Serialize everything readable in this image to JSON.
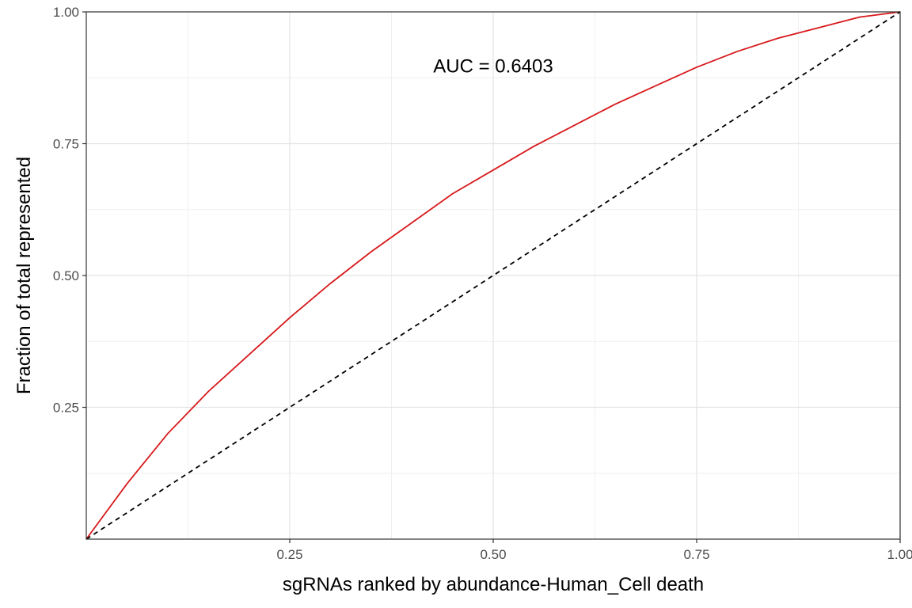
{
  "chart_data": {
    "type": "line",
    "title": "",
    "xlabel": "sgRNAs ranked by abundance-Human_Cell death",
    "ylabel": "Fraction of total represented",
    "xlim": [
      0,
      1
    ],
    "ylim": [
      0,
      1
    ],
    "x_ticks": [
      0.25,
      0.5,
      0.75,
      1.0
    ],
    "x_tick_labels": [
      "0.25",
      "0.50",
      "0.75",
      "1.00"
    ],
    "y_ticks": [
      0.25,
      0.5,
      0.75,
      1.0
    ],
    "y_tick_labels": [
      "0.25",
      "0.50",
      "0.75",
      "1.00"
    ],
    "grid": true,
    "annotation": "AUC = 0.6403",
    "series": [
      {
        "color": "#d7191c",
        "style": "solid",
        "x": [
          0,
          0.05,
          0.1,
          0.15,
          0.2,
          0.25,
          0.3,
          0.35,
          0.4,
          0.45,
          0.5,
          0.55,
          0.6,
          0.65,
          0.7,
          0.75,
          0.8,
          0.85,
          0.9,
          0.95,
          1.0
        ],
        "y": [
          0,
          0.105,
          0.2,
          0.28,
          0.35,
          0.42,
          0.485,
          0.545,
          0.6,
          0.655,
          0.7,
          0.745,
          0.785,
          0.825,
          0.86,
          0.895,
          0.925,
          0.95,
          0.97,
          0.99,
          1.0
        ]
      },
      {
        "color": "#000000",
        "style": "dashed",
        "x": [
          0,
          1
        ],
        "y": [
          0,
          1
        ]
      }
    ]
  }
}
